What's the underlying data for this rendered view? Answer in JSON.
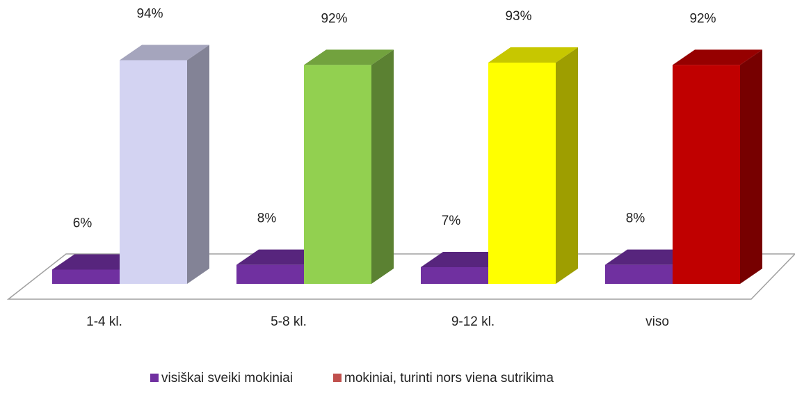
{
  "chart_data": {
    "type": "bar3d",
    "categories": [
      "1-4 kl.",
      "5-8 kl.",
      "9-12 kl.",
      "viso"
    ],
    "series": [
      {
        "name": "visiškai sveiki mokiniai",
        "color": "#7030a0",
        "values": [
          6,
          8,
          7,
          8
        ],
        "value_labels": [
          "6%",
          "8%",
          "7%",
          "8%"
        ]
      },
      {
        "name": "mokiniai, turinti nors viena sutrikima",
        "color": "#c0504d",
        "bar_colors": [
          "#d3d3f2",
          "#92d050",
          "#ffff00",
          "#c00000"
        ],
        "values": [
          94,
          92,
          93,
          92
        ],
        "value_labels": [
          "94%",
          "92%",
          "93%",
          "92%"
        ]
      }
    ]
  }
}
